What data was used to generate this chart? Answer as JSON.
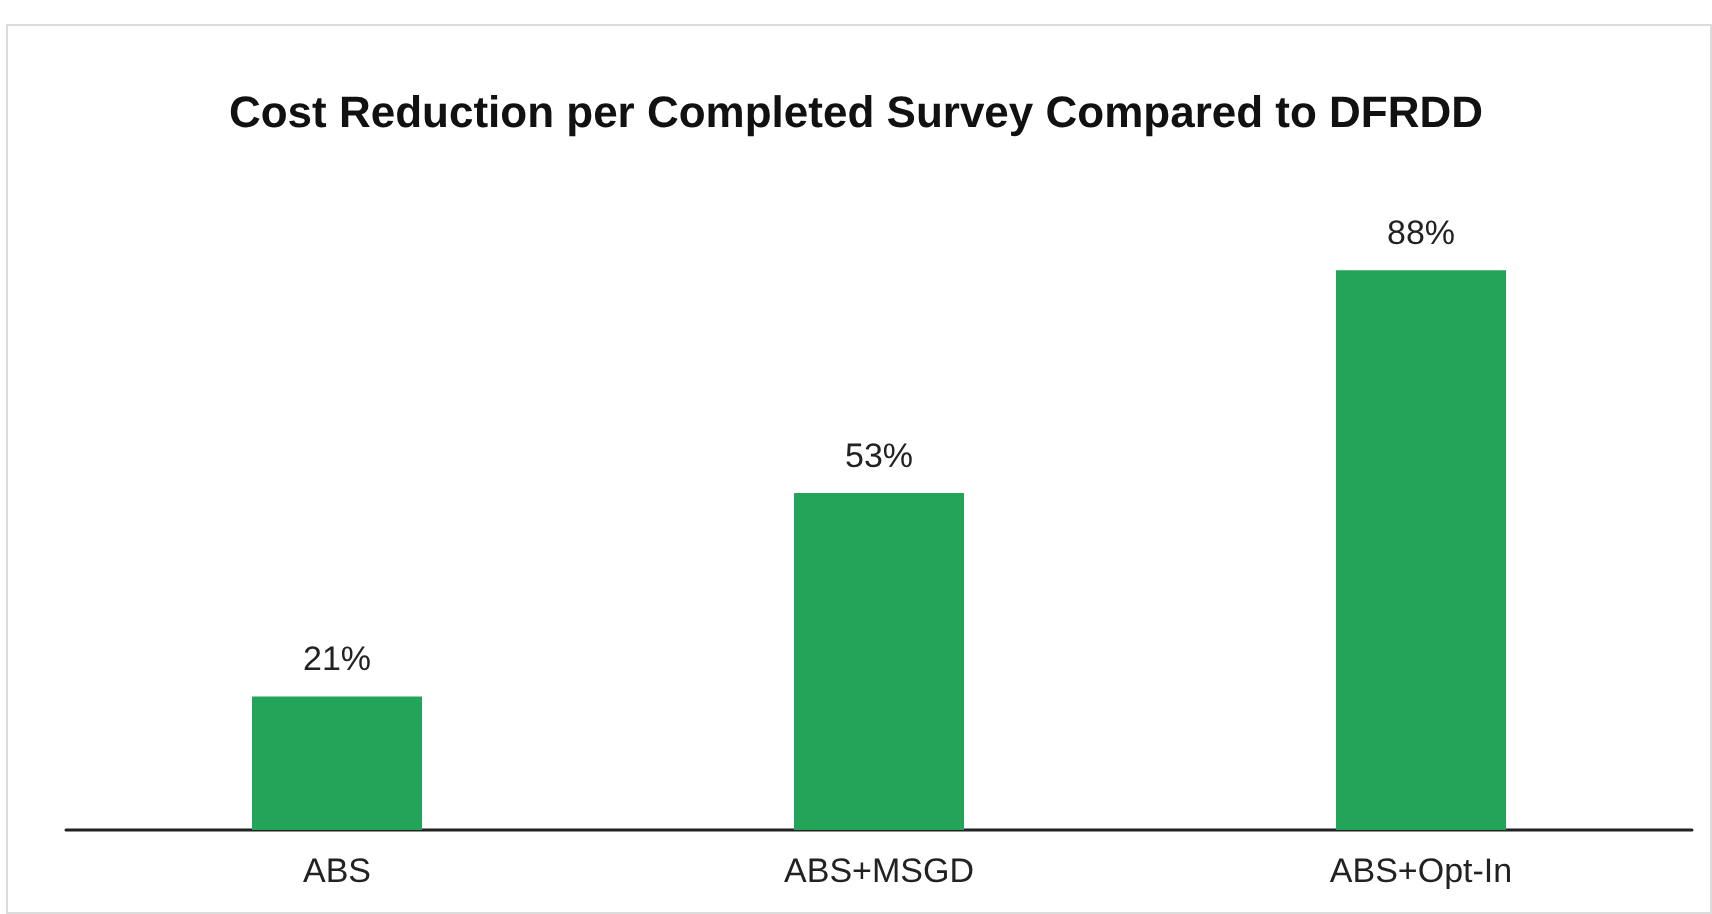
{
  "chart_data": {
    "type": "bar",
    "title": "Cost Reduction per Completed Survey Compared to DFRDD",
    "categories": [
      "ABS",
      "ABS+MSGD",
      "ABS+Opt-In"
    ],
    "values": [
      21,
      53,
      88
    ],
    "value_labels": [
      "21%",
      "53%",
      "88%"
    ],
    "color": "#22a559"
  }
}
